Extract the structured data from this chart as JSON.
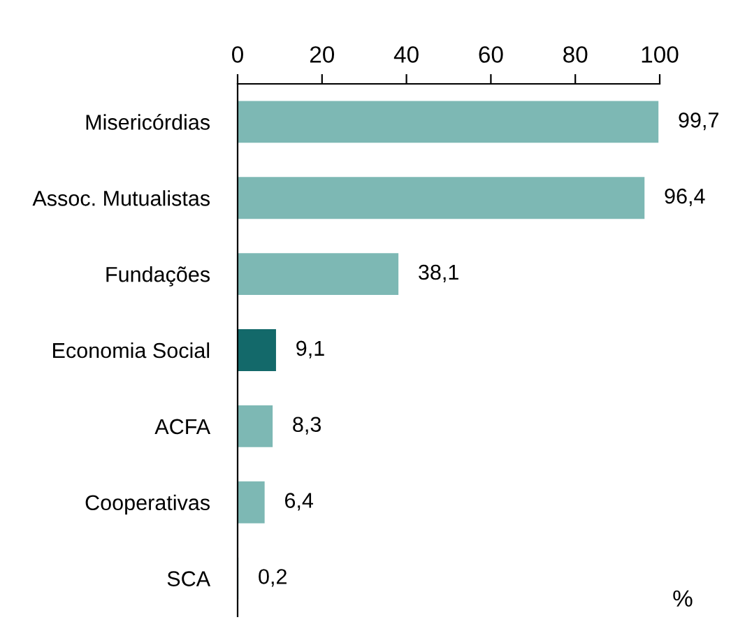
{
  "chart_data": {
    "type": "bar",
    "orientation": "horizontal",
    "categories": [
      "Misericórdias",
      "Assoc. Mutualistas",
      "Fundações",
      "Economia Social",
      "ACFA",
      "Cooperativas",
      "SCA"
    ],
    "values": [
      99.7,
      96.4,
      38.1,
      9.1,
      8.3,
      6.4,
      0.2
    ],
    "value_labels": [
      "99,7",
      "96,4",
      "38,1",
      "9,1",
      "8,3",
      "6,4",
      "0,2"
    ],
    "colors": [
      "#7db8b4",
      "#7db8b4",
      "#7db8b4",
      "#13696a",
      "#7db8b4",
      "#7db8b4",
      "#7db8b4"
    ],
    "xlim": [
      0,
      100
    ],
    "xticks": [
      0,
      20,
      40,
      60,
      80,
      100
    ],
    "grid": false,
    "annotations": [
      "%"
    ]
  }
}
